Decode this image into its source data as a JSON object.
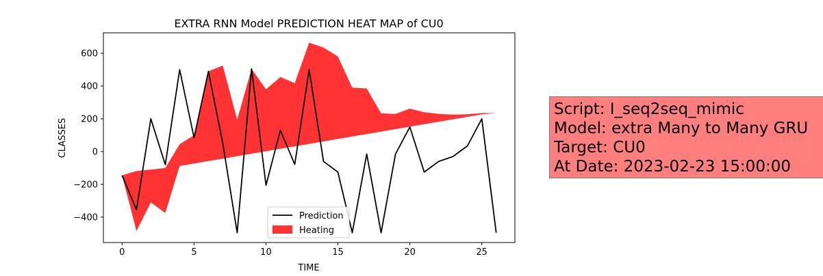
{
  "chart_data": {
    "type": "line",
    "title": "EXTRA RNN Model PREDICTION HEAT MAP of CU0",
    "xlabel": "TIME",
    "ylabel": "CLASSES",
    "xlim": [
      -1.3,
      27.3
    ],
    "ylim": [
      -555,
      725
    ],
    "x_ticks": [
      0,
      5,
      10,
      15,
      20,
      25
    ],
    "y_ticks": [
      -400,
      -200,
      0,
      200,
      400,
      600
    ],
    "grid": false,
    "legend_position": "lower-center",
    "series": [
      {
        "name": "Prediction",
        "type": "line",
        "color": "#000000",
        "x": [
          0,
          1,
          2,
          3,
          4,
          5,
          6,
          7,
          8,
          9,
          10,
          11,
          12,
          13,
          14,
          15,
          16,
          17,
          18,
          19,
          20,
          21,
          22,
          23,
          24,
          25,
          26
        ],
        "values": [
          -145,
          -355,
          200,
          -80,
          500,
          85,
          490,
          50,
          -495,
          505,
          -205,
          130,
          -78,
          500,
          -60,
          -125,
          -495,
          -15,
          -495,
          -15,
          150,
          -125,
          -60,
          -30,
          35,
          200,
          -495
        ]
      },
      {
        "name": "Heating",
        "type": "area",
        "color": "#ff0000",
        "x": [
          0,
          1,
          2,
          3,
          4,
          5,
          6,
          7,
          8,
          9,
          10,
          11,
          12,
          13,
          14,
          15,
          16,
          17,
          18,
          19,
          20,
          21,
          22,
          23,
          24,
          25,
          26
        ],
        "upper": [
          -145,
          -118,
          -110,
          -100,
          45,
          100,
          490,
          525,
          195,
          505,
          380,
          455,
          418,
          665,
          635,
          580,
          390,
          385,
          233,
          230,
          262,
          240,
          230,
          226,
          228,
          235,
          235
        ],
        "lower": [
          -145,
          -485,
          -310,
          -375,
          -88,
          -73,
          -58,
          -43,
          -28,
          -13,
          2,
          17,
          32,
          47,
          62,
          77,
          92,
          107,
          122,
          137,
          152,
          167,
          182,
          197,
          212,
          227,
          235
        ]
      }
    ]
  },
  "info_box": {
    "lines": [
      "Script: I_seq2seq_mimic",
      "Model: extra Many to Many GRU",
      "Target: CU0",
      "At Date: 2023-02-23 15:00:00"
    ],
    "background": "#ff7f7f"
  }
}
